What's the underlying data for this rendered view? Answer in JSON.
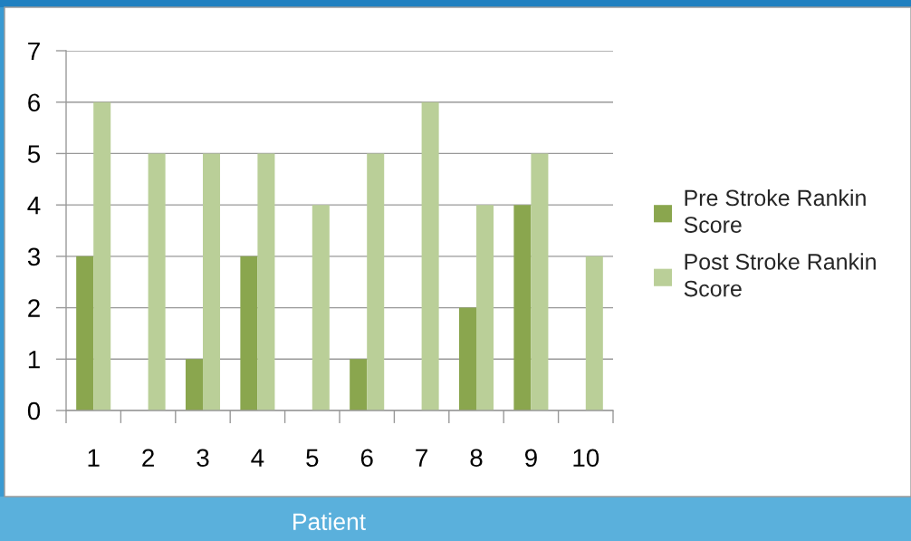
{
  "chart_data": {
    "type": "bar",
    "xlabel": "Patient",
    "categories": [
      "1",
      "2",
      "3",
      "4",
      "5",
      "6",
      "7",
      "8",
      "9",
      "10"
    ],
    "series": [
      {
        "name": "Pre Stroke Rankin Score",
        "color": "#8aa64e",
        "values": [
          3,
          0,
          1,
          3,
          0,
          1,
          0,
          2,
          4,
          0
        ]
      },
      {
        "name": "Post Stroke Rankin Score",
        "color": "#bacf98",
        "values": [
          6,
          5,
          5,
          5,
          4,
          5,
          6,
          4,
          5,
          3
        ]
      }
    ],
    "ylim": [
      0,
      7
    ],
    "yticks": [
      0,
      1,
      2,
      3,
      4,
      5,
      6,
      7
    ],
    "grid": "y",
    "legend": "right"
  }
}
